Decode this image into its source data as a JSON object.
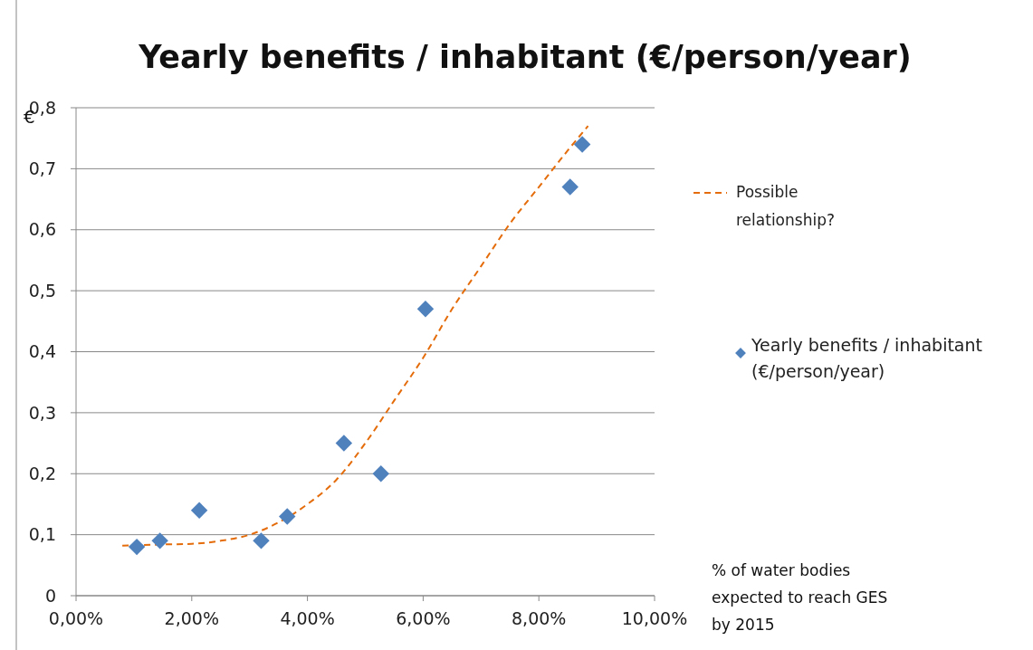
{
  "chart_data": {
    "type": "scatter",
    "title": "Yearly benefits / inhabitant (€/person/year)",
    "ylabel": "€",
    "xlabel": "% of water bodies expected to reach GES by 2015",
    "xlim": [
      0,
      10
    ],
    "xticks": [
      {
        "value": 0,
        "label": "0,00%"
      },
      {
        "value": 2,
        "label": "2,00%"
      },
      {
        "value": 4,
        "label": "4,00%"
      },
      {
        "value": 6,
        "label": "6,00%"
      },
      {
        "value": 8,
        "label": "8,00%"
      },
      {
        "value": 10,
        "label": "10,00%"
      }
    ],
    "ylim": [
      0,
      0.8
    ],
    "yticks": [
      0,
      {
        "value": 0.1,
        "label": "0,1"
      },
      {
        "value": 0.2,
        "label": "0,2"
      },
      {
        "value": 0.3,
        "label": "0,3"
      },
      {
        "value": 0.4,
        "label": "0,4"
      },
      {
        "value": 0.5,
        "label": "0,5"
      },
      {
        "value": 0.6,
        "label": "0,6"
      },
      {
        "value": 0.7,
        "label": "0,7"
      },
      {
        "value": 0.8,
        "label": "0,8"
      }
    ],
    "grid": "y",
    "legend": "right",
    "series": [
      {
        "name": "Possible relationship?",
        "type": "line",
        "color": "#e46c0a",
        "line_style": "dashed",
        "marker": "none",
        "x": [
          0.8,
          1.5,
          2.0,
          2.5,
          3.0,
          3.5,
          4.0,
          4.5,
          5.0,
          5.5,
          6.0,
          6.5,
          7.0,
          7.5,
          8.0,
          8.5,
          8.85
        ],
        "values": [
          0.082,
          0.084,
          0.085,
          0.09,
          0.1,
          0.12,
          0.15,
          0.19,
          0.25,
          0.32,
          0.39,
          0.47,
          0.54,
          0.61,
          0.67,
          0.73,
          0.77
        ]
      },
      {
        "name": "Yearly benefits / inhabitant (€/person/year)",
        "color": "#4f81bd",
        "marker": "diamond",
        "x": [
          1.05,
          1.45,
          2.13,
          3.2,
          3.65,
          4.63,
          5.27,
          6.04,
          8.54,
          8.75
        ],
        "values": [
          0.08,
          0.09,
          0.14,
          0.09,
          0.13,
          0.25,
          0.2,
          0.47,
          0.67,
          0.74
        ]
      }
    ]
  }
}
